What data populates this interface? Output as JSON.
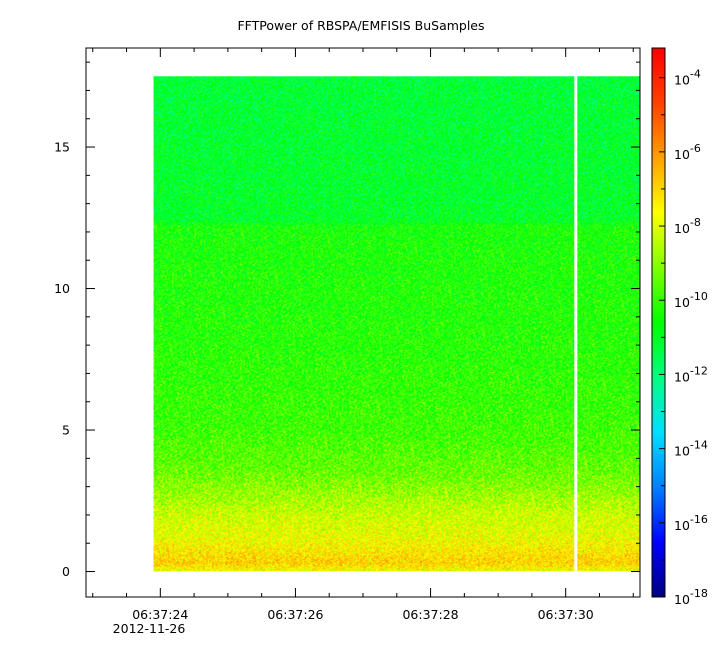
{
  "chart_data": {
    "type": "heatmap",
    "title": "FFTPower of RBSPA/EMFISIS  BuSamples",
    "xlabel": "",
    "ylabel": "",
    "x_ticks": [
      {
        "label": "06:37:24",
        "value": 24
      },
      {
        "label": "06:37:26",
        "value": 26
      },
      {
        "label": "06:37:28",
        "value": 28
      },
      {
        "label": "06:37:30",
        "value": 30
      }
    ],
    "x_date_label": "2012-11-26",
    "x_minor_step": 0.5,
    "xlim": [
      22.9,
      31.1
    ],
    "data_xrange": [
      23.9,
      31.1
    ],
    "gap_x": 30.15,
    "y_ticks": [
      0,
      5,
      10,
      15
    ],
    "ylim": [
      -0.9,
      18.5
    ],
    "data_yrange": [
      0,
      17.5
    ],
    "colorbar": {
      "scale": "log",
      "range_exp": [
        -18,
        -3.2
      ],
      "ticks": [
        {
          "base": "10",
          "exp": "-4"
        },
        {
          "base": "10",
          "exp": "-6"
        },
        {
          "base": "10",
          "exp": "-8"
        },
        {
          "base": "10",
          "exp": "-10"
        },
        {
          "base": "10",
          "exp": "-12"
        },
        {
          "base": "10",
          "exp": "-14"
        },
        {
          "base": "10",
          "exp": "-16"
        },
        {
          "base": "10",
          "exp": "-18"
        }
      ],
      "colors": [
        "#000080",
        "#0000ff",
        "#0080ff",
        "#00e0ff",
        "#00ff80",
        "#00ff00",
        "#80ff00",
        "#ffff00",
        "#ffa000",
        "#ff4000",
        "#ff0000"
      ]
    },
    "power_profile": [
      {
        "freq": 0.0,
        "log_power": -7.8
      },
      {
        "freq": 0.3,
        "log_power": -6.9
      },
      {
        "freq": 0.6,
        "log_power": -7.2
      },
      {
        "freq": 1.2,
        "log_power": -7.8
      },
      {
        "freq": 2.0,
        "log_power": -8.2
      },
      {
        "freq": 2.7,
        "log_power": -8.8
      },
      {
        "freq": 3.5,
        "log_power": -9.4
      },
      {
        "freq": 5.0,
        "log_power": -9.9
      },
      {
        "freq": 8.0,
        "log_power": -10.2
      },
      {
        "freq": 12.2,
        "log_power": -10.4
      },
      {
        "freq": 12.4,
        "log_power": -11.0
      },
      {
        "freq": 15.0,
        "log_power": -11.1
      },
      {
        "freq": 17.5,
        "log_power": -11.2
      }
    ]
  }
}
